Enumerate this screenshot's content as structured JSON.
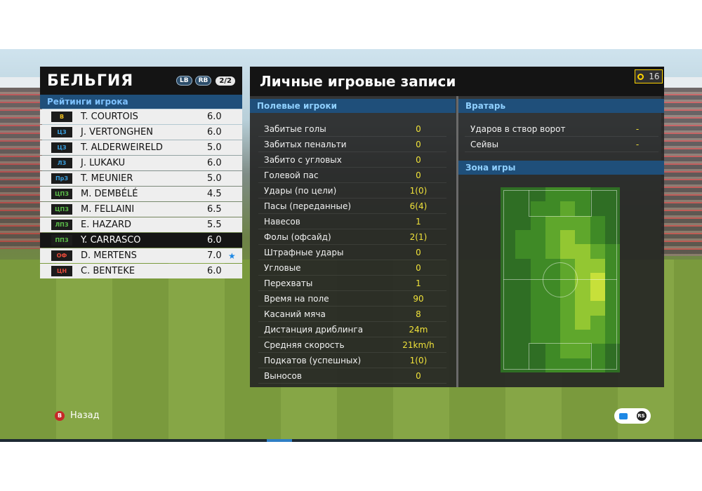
{
  "team": {
    "name": "БЕЛЬГИЯ",
    "lb": "LB",
    "rb": "RB",
    "page": "2/2"
  },
  "ratings_header": "Рейтинги игрока",
  "players": [
    {
      "pos": "В",
      "pos_color": "#f0c020",
      "name": "T. COURTOIS",
      "rating": "6.0",
      "star": ""
    },
    {
      "pos": "ЦЗ",
      "pos_color": "#3aa0e0",
      "name": "J. VERTONGHEN",
      "rating": "6.0",
      "star": ""
    },
    {
      "pos": "ЦЗ",
      "pos_color": "#3aa0e0",
      "name": "T. ALDERWEIRELD",
      "rating": "5.0",
      "star": ""
    },
    {
      "pos": "ЛЗ",
      "pos_color": "#3aa0e0",
      "name": "J. LUKAKU",
      "rating": "6.0",
      "star": ""
    },
    {
      "pos": "ПрЗ",
      "pos_color": "#3aa0e0",
      "name": "T. MEUNIER",
      "rating": "5.0",
      "star": ""
    },
    {
      "pos": "ЦПЗ",
      "pos_color": "#5cc04a",
      "name": "M. DEMBÉLÉ",
      "rating": "4.5",
      "star": ""
    },
    {
      "pos": "ЦПЗ",
      "pos_color": "#5cc04a",
      "name": "M. FELLAINI",
      "rating": "6.5",
      "star": ""
    },
    {
      "pos": "ЛПЗ",
      "pos_color": "#5cc04a",
      "name": "E. HAZARD",
      "rating": "5.5",
      "star": ""
    },
    {
      "pos": "ППЗ",
      "pos_color": "#5cc04a",
      "name": "Y. CARRASCO",
      "rating": "6.0",
      "star": "",
      "selected": true
    },
    {
      "pos": "ОФ",
      "pos_color": "#e84b3a",
      "name": "D. MERTENS",
      "rating": "7.0",
      "star": "★"
    },
    {
      "pos": "ЦН",
      "pos_color": "#e84b3a",
      "name": "C. BENTEKE",
      "rating": "6.0",
      "star": ""
    }
  ],
  "main": {
    "title": "Личные игровые записи",
    "timer": "16",
    "field_header": "Полевые игроки",
    "gk_header": "Вратарь",
    "zone_header": "Зона игры",
    "stats": [
      {
        "label": "Забитые голы",
        "value": "0"
      },
      {
        "label": "Забитых пенальти",
        "value": "0"
      },
      {
        "label": "Забито с угловых",
        "value": "0"
      },
      {
        "label": "Голевой пас",
        "value": "0"
      },
      {
        "label": "Удары (по цели)",
        "value": "1(0)"
      },
      {
        "label": "Пасы (переданные)",
        "value": "6(4)"
      },
      {
        "label": "Навесов",
        "value": "1"
      },
      {
        "label": "Фолы (офсайд)",
        "value": "2(1)"
      },
      {
        "label": "Штрафные удары",
        "value": "0"
      },
      {
        "label": "Угловые",
        "value": "0"
      },
      {
        "label": "Перехваты",
        "value": "1"
      },
      {
        "label": "Время на поле",
        "value": "90"
      },
      {
        "label": "Касаний мяча",
        "value": "8"
      },
      {
        "label": "Дистанция дриблинга",
        "value": "24m"
      },
      {
        "label": "Средняя скорость",
        "value": "21km/h"
      },
      {
        "label": "Подкатов (успешных)",
        "value": "1(0)"
      },
      {
        "label": "Выносов",
        "value": "0"
      }
    ],
    "gk_stats": [
      {
        "label": "Ударов в створ ворот",
        "value": "-"
      },
      {
        "label": "Сейвы",
        "value": "-"
      }
    ],
    "heatmap_intensity": [
      [
        0,
        0,
        0,
        1,
        1,
        1,
        0,
        0
      ],
      [
        0,
        0,
        1,
        1,
        2,
        1,
        0,
        0
      ],
      [
        0,
        0,
        1,
        2,
        2,
        2,
        1,
        0
      ],
      [
        0,
        1,
        1,
        2,
        3,
        2,
        1,
        0
      ],
      [
        0,
        1,
        1,
        2,
        3,
        3,
        2,
        1
      ],
      [
        0,
        0,
        1,
        1,
        2,
        3,
        3,
        1
      ],
      [
        0,
        0,
        1,
        1,
        2,
        3,
        4,
        1
      ],
      [
        0,
        0,
        1,
        1,
        2,
        3,
        4,
        1
      ],
      [
        0,
        0,
        1,
        1,
        2,
        3,
        3,
        1
      ],
      [
        0,
        0,
        1,
        1,
        2,
        3,
        2,
        1
      ],
      [
        0,
        0,
        1,
        1,
        2,
        2,
        2,
        1
      ],
      [
        0,
        0,
        0,
        1,
        2,
        2,
        1,
        0
      ],
      [
        0,
        0,
        0,
        1,
        1,
        1,
        1,
        0
      ]
    ],
    "heatmap_colors": [
      "#2f6e24",
      "#3f8a26",
      "#5fa72c",
      "#93c732",
      "#c7e03a"
    ]
  },
  "footer": {
    "back_label": "Назад",
    "back_key": "B",
    "rs_key": "RS"
  }
}
